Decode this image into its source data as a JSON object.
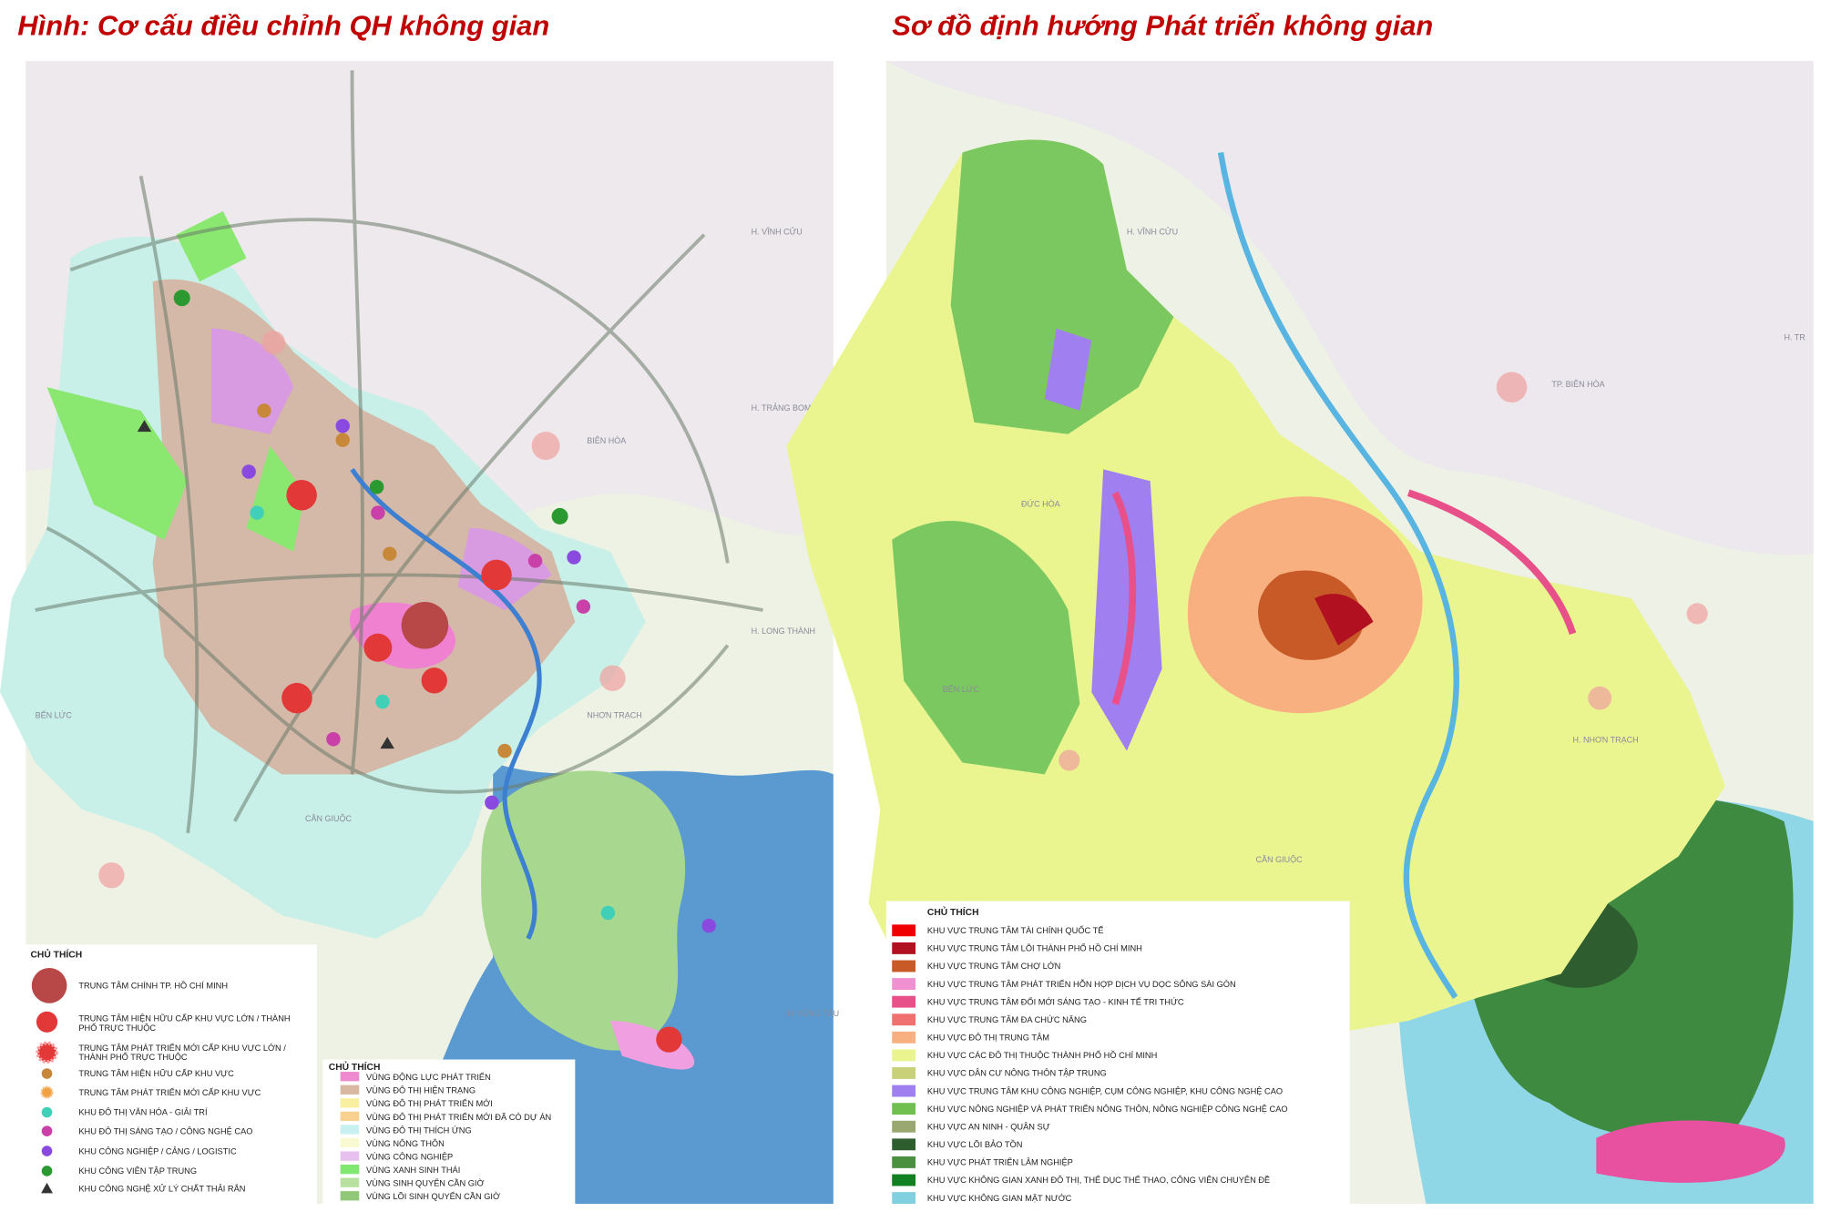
{
  "left": {
    "title": "Hình: Cơ cấu điều chỉnh QH không gian",
    "places": [
      "H. VĨNH CỬU",
      "H. TRẢNG BOM",
      "BIÊN HÒA",
      "H. LONG THÀNH",
      "NHƠN TRẠCH",
      "BẾN LỨC",
      "CẦN GIUỘC",
      "ĐI VŨNG TÀU"
    ],
    "legend1": {
      "title": "CHỦ THÍCH",
      "items": [
        [
          "TRUNG TÂM CHÍNH TP. HỒ CHÍ MINH"
        ],
        [
          "TRUNG TÂM HIỆN HỮU CẤP KHU VỰC LỚN / THÀNH",
          "PHỐ TRỰC THUỘC"
        ],
        [
          "TRUNG TÂM PHÁT TRIỂN MỚI CẤP KHU VỰC LỚN /",
          "THÀNH PHỐ TRỰC THUỘC"
        ],
        [
          "TRUNG TÂM HIỆN HỮU CẤP KHU VỰC"
        ],
        [
          "TRUNG TÂM PHÁT TRIỂN MỚI CẤP KHU VỰC"
        ],
        [
          "KHU ĐÔ THỊ VĂN HÓA - GIẢI TRÍ"
        ],
        [
          "KHU ĐÔ THỊ SÁNG TẠO / CÔNG NGHỆ CAO"
        ],
        [
          "KHU CÔNG NGHIỆP / CẢNG / LOGISTIC"
        ],
        [
          "KHU CÔNG VIÊN TẬP TRUNG"
        ],
        [
          "KHU CÔNG NGHỆ XỬ LÝ CHẤT THẢI RẮN"
        ]
      ]
    },
    "legend2": {
      "title": "CHỦ THÍCH",
      "items": [
        {
          "label": "VÙNG ĐỘNG LỰC PHÁT TRIỂN",
          "color": "#f08ad0"
        },
        {
          "label": "VÙNG ĐÔ THỊ HIỆN TRẠNG",
          "color": "#d8b8a0"
        },
        {
          "label": "VÙNG ĐÔ THỊ PHÁT TRIỂN MỚI",
          "color": "#f8f0a0"
        },
        {
          "label": "VÙNG ĐÔ THỊ PHÁT TRIỂN MỚI ĐÃ CÓ DỰ ÁN",
          "color": "#f8d090"
        },
        {
          "label": "VÙNG ĐÔ THỊ THÍCH ỨNG",
          "color": "#c8f0f0"
        },
        {
          "label": "VÙNG NÔNG THÔN",
          "color": "#fafad0"
        },
        {
          "label": "VÙNG CÔNG NGHIỆP",
          "color": "#e8c0f0"
        },
        {
          "label": "VÙNG XANH SINH THÁI",
          "color": "#80e870"
        },
        {
          "label": "VÙNG SINH QUYỂN CẦN GIỜ",
          "color": "#b8e0a0"
        },
        {
          "label": "VÙNG LÕI SINH QUYỂN CẦN GIỜ",
          "color": "#90c878"
        }
      ]
    }
  },
  "right": {
    "title": "Sơ đồ định hướng Phát triển không gian",
    "places": [
      "H. VĨNH CỬU",
      "TP. BIÊN HÒA",
      "ĐỨC HÒA",
      "BẾN LỨC",
      "H. NHƠN TRẠCH",
      "CẦN GIUỘC",
      "H. TR"
    ],
    "legend": {
      "title": "CHỦ THÍCH",
      "items": [
        {
          "label": "KHU VỰC TRUNG TÂM TÀI CHÍNH QUỐC TẾ",
          "color": "#f00000"
        },
        {
          "label": "KHU VỰC TRUNG TÂM LÕI THÀNH PHỐ HỒ CHÍ MINH",
          "color": "#b01020"
        },
        {
          "label": "KHU VỰC TRUNG TÂM CHỢ LỚN",
          "color": "#c85a28"
        },
        {
          "label": "KHU VỰC TRUNG TÂM PHÁT TRIỂN HỖN HỢP DỊCH VỤ DỌC SÔNG SÀI GÒN",
          "color": "#f090d0"
        },
        {
          "label": "KHU VỰC TRUNG TÂM ĐỔI MỚI SÁNG TẠO  - KINH TẾ TRI THỨC",
          "color": "#e8508a"
        },
        {
          "label": "KHU VỰC TRUNG TÂM ĐA CHỨC NĂNG",
          "color": "#f07070"
        },
        {
          "label": "KHU VỰC ĐÔ THỊ TRUNG TÂM",
          "color": "#f8b080"
        },
        {
          "label": "KHU VỰC CÁC ĐÔ THỊ THUỘC THÀNH PHỐ HỒ CHÍ MINH",
          "color": "#eaf590"
        },
        {
          "label": "KHU VỰC DÂN CƯ NÔNG THÔN TẬP TRUNG",
          "color": "#c8d078"
        },
        {
          "label": "KHU VỰC TRUNG TÂM KHU CÔNG NGHIỆP, CỤM CÔNG NGHIỆP, KHU CÔNG NGHỆ CAO",
          "color": "#a080f0"
        },
        {
          "label": "KHU VỰC NÔNG NGHIỆP VÀ PHÁT TRIỂN NÔNG THÔN, NÔNG NGHIỆP CÔNG NGHỆ CAO",
          "color": "#70c050"
        },
        {
          "label": "KHU VỰC AN NINH - QUÂN SỰ",
          "color": "#98a870"
        },
        {
          "label": "KHU VỰC LÕI BẢO TỒN",
          "color": "#2e5e30"
        },
        {
          "label": "KHU VỰC PHÁT TRIỂN LÂM NGHIỆP",
          "color": "#4a9040"
        },
        {
          "label": "KHU VỰC KHÔNG GIAN XANH ĐÔ THỊ, THỂ DỤC THỂ THAO, CÔNG VIÊN CHUYÊN ĐỀ",
          "color": "#108020"
        },
        {
          "label": "KHU VỰC KHÔNG GIAN MẶT NƯỚC",
          "color": "#80d0e0"
        }
      ]
    }
  }
}
